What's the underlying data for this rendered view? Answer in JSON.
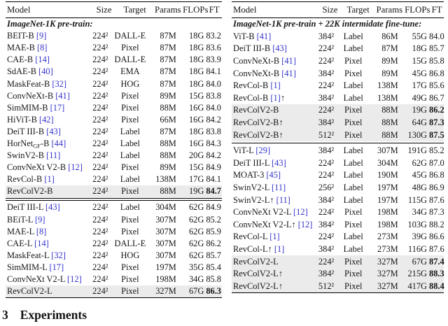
{
  "heading": {
    "number": "3",
    "title": "Experiments"
  },
  "colors": {
    "citation": "#3333cc",
    "row_highlight": "#ebebeb",
    "rule": "#000000"
  },
  "tables": [
    {
      "name": "imagenet1k-pretrain-results-table",
      "columns": [
        "Model",
        "Size",
        "Target",
        "Params",
        "FLOPs",
        "FT"
      ],
      "sections": [
        {
          "title": "ImageNet-1K pre-train:",
          "rows": [
            {
              "model": [
                [
                  "BEIT-B "
                ],
                [
                  "[9]",
                  "cite"
                ]
              ],
              "size": "224²",
              "target": "DALL-E",
              "params": "87M",
              "flops": "18G",
              "ft": "83.2",
              "hl": false,
              "ft_bold": false
            },
            {
              "model": [
                [
                  "MAE-B "
                ],
                [
                  "[8]",
                  "cite"
                ]
              ],
              "size": "224²",
              "target": "Pixel",
              "params": "87M",
              "flops": "18G",
              "ft": "83.6",
              "hl": false,
              "ft_bold": false
            },
            {
              "model": [
                [
                  "CAE-B "
                ],
                [
                  "[14]",
                  "cite"
                ]
              ],
              "size": "224²",
              "target": "DALL-E",
              "params": "87M",
              "flops": "18G",
              "ft": "83.9",
              "hl": false,
              "ft_bold": false
            },
            {
              "model": [
                [
                  "SdAE-B "
                ],
                [
                  "[40]",
                  "cite"
                ]
              ],
              "size": "224²",
              "target": "EMA",
              "params": "87M",
              "flops": "18G",
              "ft": "84.1",
              "hl": false,
              "ft_bold": false
            },
            {
              "model": [
                [
                  "MaskFeat-B "
                ],
                [
                  "[32]",
                  "cite"
                ]
              ],
              "size": "224²",
              "target": "HOG",
              "params": "87M",
              "flops": "18G",
              "ft": "84.0",
              "hl": false,
              "ft_bold": false
            },
            {
              "model": [
                [
                  "ConvNeXt-B "
                ],
                [
                  "[41]",
                  "cite"
                ]
              ],
              "size": "224²",
              "target": "Pixel",
              "params": "89M",
              "flops": "15G",
              "ft": "83.8",
              "hl": false,
              "ft_bold": false
            },
            {
              "model": [
                [
                  "SimMIM-B "
                ],
                [
                  "[17]",
                  "cite"
                ]
              ],
              "size": "224²",
              "target": "Pixel",
              "params": "88M",
              "flops": "16G",
              "ft": "84.0",
              "hl": false,
              "ft_bold": false
            },
            {
              "model": [
                [
                  "HiViT-B "
                ],
                [
                  "[42]",
                  "cite"
                ]
              ],
              "size": "224²",
              "target": "Pixel",
              "params": "66M",
              "flops": "16G",
              "ft": "84.2",
              "hl": false,
              "ft_bold": false
            },
            {
              "model": [
                [
                  "DeiT III-B "
                ],
                [
                  "[43]",
                  "cite"
                ]
              ],
              "size": "224²",
              "target": "Label",
              "params": "87M",
              "flops": "18G",
              "ft": "83.8",
              "hl": false,
              "ft_bold": false
            },
            {
              "model": [
                [
                  "HorNet"
                ],
                [
                  "GF",
                  "sub"
                ],
                [
                  "-B "
                ],
                [
                  "[44]",
                  "cite"
                ]
              ],
              "size": "224²",
              "target": "Label",
              "params": "88M",
              "flops": "16G",
              "ft": "84.3",
              "hl": false,
              "ft_bold": false
            },
            {
              "model": [
                [
                  "SwinV2-B "
                ],
                [
                  "[11]",
                  "cite"
                ]
              ],
              "size": "224²",
              "target": "Label",
              "params": "88M",
              "flops": "20G",
              "ft": "84.2",
              "hl": false,
              "ft_bold": false
            },
            {
              "model": [
                [
                  "ConvNeXt V2-B "
                ],
                [
                  "[12]",
                  "cite"
                ]
              ],
              "size": "224²",
              "target": "Pixel",
              "params": "89M",
              "flops": "15G",
              "ft": "84.9",
              "hl": false,
              "ft_bold": false
            },
            {
              "model": [
                [
                  "RevCol-B "
                ],
                [
                  "[1]",
                  "cite"
                ]
              ],
              "size": "224²",
              "target": "Label",
              "params": "138M",
              "flops": "17G",
              "ft": "84.1",
              "hl": false,
              "ft_bold": false
            },
            {
              "model": [
                [
                  "RevColV2-B"
                ]
              ],
              "size": "224²",
              "target": "Pixel",
              "params": "88M",
              "flops": "19G",
              "ft": "84.7",
              "hl": true,
              "ft_bold": true
            }
          ]
        },
        {
          "title": null,
          "rows": [
            {
              "model": [
                [
                  "DeiT III-L "
                ],
                [
                  "[43]",
                  "cite"
                ]
              ],
              "size": "224²",
              "target": "Label",
              "params": "304M",
              "flops": "62G",
              "ft": "84.9",
              "hl": false,
              "ft_bold": false
            },
            {
              "model": [
                [
                  "BEiT-L "
                ],
                [
                  "[9]",
                  "cite"
                ]
              ],
              "size": "224²",
              "target": "Pixel",
              "params": "307M",
              "flops": "62G",
              "ft": "85.2",
              "hl": false,
              "ft_bold": false
            },
            {
              "model": [
                [
                  "MAE-L "
                ],
                [
                  "[8]",
                  "cite"
                ]
              ],
              "size": "224²",
              "target": "Pixel",
              "params": "307M",
              "flops": "62G",
              "ft": "85.9",
              "hl": false,
              "ft_bold": false
            },
            {
              "model": [
                [
                  "CAE-L "
                ],
                [
                  "[14]",
                  "cite"
                ]
              ],
              "size": "224²",
              "target": "DALL-E",
              "params": "307M",
              "flops": "62G",
              "ft": "86.2",
              "hl": false,
              "ft_bold": false
            },
            {
              "model": [
                [
                  "MaskFeat-L "
                ],
                [
                  "[32]",
                  "cite"
                ]
              ],
              "size": "224²",
              "target": "HOG",
              "params": "307M",
              "flops": "62G",
              "ft": "85.7",
              "hl": false,
              "ft_bold": false
            },
            {
              "model": [
                [
                  "SimMIM-L "
                ],
                [
                  "[17]",
                  "cite"
                ]
              ],
              "size": "224²",
              "target": "Pixel",
              "params": "197M",
              "flops": "35G",
              "ft": "85.4",
              "hl": false,
              "ft_bold": false
            },
            {
              "model": [
                [
                  "ConvNeXt V2-L "
                ],
                [
                  "[12]",
                  "cite"
                ]
              ],
              "size": "224²",
              "target": "Pixel",
              "params": "198M",
              "flops": "34G",
              "ft": "85.8",
              "hl": false,
              "ft_bold": false
            },
            {
              "model": [
                [
                  "RevColV2-L"
                ]
              ],
              "size": "224²",
              "target": "Pixel",
              "params": "327M",
              "flops": "67G",
              "ft": "86.3",
              "hl": true,
              "ft_bold": true
            }
          ]
        }
      ]
    },
    {
      "name": "imagenet1k-22k-finetune-results-table",
      "columns": [
        "Model",
        "Size",
        "Target",
        "Params",
        "FLOPs",
        "FT"
      ],
      "sections": [
        {
          "title": "ImageNet-1K pre-train + 22K intermidate fine-tune:",
          "rows": [
            {
              "model": [
                [
                  "ViT-B "
                ],
                [
                  "[41]",
                  "cite"
                ]
              ],
              "size": "384²",
              "target": "Label",
              "params": "86M",
              "flops": "55G",
              "ft": "84.0",
              "hl": false,
              "ft_bold": false
            },
            {
              "model": [
                [
                  "DeiT III-B "
                ],
                [
                  "[43]",
                  "cite"
                ]
              ],
              "size": "224²",
              "target": "Label",
              "params": "87M",
              "flops": "18G",
              "ft": "85.7",
              "hl": false,
              "ft_bold": false
            },
            {
              "model": [
                [
                  "ConvNeXt-B "
                ],
                [
                  "[41]",
                  "cite"
                ]
              ],
              "size": "224²",
              "target": "Pixel",
              "params": "89M",
              "flops": "15G",
              "ft": "85.8",
              "hl": false,
              "ft_bold": false
            },
            {
              "model": [
                [
                  "ConvNeXt-B "
                ],
                [
                  "[41]",
                  "cite"
                ]
              ],
              "size": "384²",
              "target": "Pixel",
              "params": "89M",
              "flops": "45G",
              "ft": "86.8",
              "hl": false,
              "ft_bold": false
            },
            {
              "model": [
                [
                  "RevCol-B "
                ],
                [
                  "[1]",
                  "cite"
                ]
              ],
              "size": "224²",
              "target": "Label",
              "params": "138M",
              "flops": "17G",
              "ft": "85.6",
              "hl": false,
              "ft_bold": false
            },
            {
              "model": [
                [
                  "RevCol-B "
                ],
                [
                  "[1]",
                  "cite"
                ],
                [
                  "↑"
                ]
              ],
              "size": "384²",
              "target": "Label",
              "params": "138M",
              "flops": "49G",
              "ft": "86.7",
              "hl": false,
              "ft_bold": false
            },
            {
              "model": [
                [
                  "RevColV2-B"
                ]
              ],
              "size": "224²",
              "target": "Pixel",
              "params": "88M",
              "flops": "19G",
              "ft": "86.2",
              "hl": true,
              "ft_bold": true
            },
            {
              "model": [
                [
                  "RevColV2-B↑"
                ]
              ],
              "size": "384²",
              "target": "Pixel",
              "params": "88M",
              "flops": "64G",
              "ft": "87.3",
              "hl": true,
              "ft_bold": true
            },
            {
              "model": [
                [
                  "RevColV2-B↑"
                ]
              ],
              "size": "512²",
              "target": "Pixel",
              "params": "88M",
              "flops": "130G",
              "ft": "87.5",
              "hl": true,
              "ft_bold": true
            }
          ]
        },
        {
          "title": null,
          "rows": [
            {
              "model": [
                [
                  "ViT-L "
                ],
                [
                  "[29]",
                  "cite"
                ]
              ],
              "size": "384²",
              "target": "Label",
              "params": "307M",
              "flops": "191G",
              "ft": "85.2",
              "hl": false,
              "ft_bold": false
            },
            {
              "model": [
                [
                  "DeiT III-L "
                ],
                [
                  "[43]",
                  "cite"
                ]
              ],
              "size": "224²",
              "target": "Label",
              "params": "304M",
              "flops": "62G",
              "ft": "87.0",
              "hl": false,
              "ft_bold": false
            },
            {
              "model": [
                [
                  "MOAT-3 "
                ],
                [
                  "[45]",
                  "cite"
                ]
              ],
              "size": "224²",
              "target": "Label",
              "params": "190M",
              "flops": "45G",
              "ft": "86.8",
              "hl": false,
              "ft_bold": false
            },
            {
              "model": [
                [
                  "SwinV2-L "
                ],
                [
                  "[11]",
                  "cite"
                ]
              ],
              "size": "256²",
              "target": "Label",
              "params": "197M",
              "flops": "48G",
              "ft": "86.9",
              "hl": false,
              "ft_bold": false
            },
            {
              "model": [
                [
                  "SwinV2-L↑ "
                ],
                [
                  "[11]",
                  "cite"
                ]
              ],
              "size": "384²",
              "target": "Label",
              "params": "197M",
              "flops": "115G",
              "ft": "87.6",
              "hl": false,
              "ft_bold": false
            },
            {
              "model": [
                [
                  "ConvNeXt V2-L "
                ],
                [
                  "[12]",
                  "cite"
                ]
              ],
              "size": "224²",
              "target": "Pixel",
              "params": "198M",
              "flops": "34G",
              "ft": "87.3",
              "hl": false,
              "ft_bold": false
            },
            {
              "model": [
                [
                  "ConvNeXt V2-L↑ "
                ],
                [
                  "[12]",
                  "cite"
                ]
              ],
              "size": "384²",
              "target": "Pixel",
              "params": "198M",
              "flops": "103G",
              "ft": "88.2",
              "hl": false,
              "ft_bold": false
            },
            {
              "model": [
                [
                  "RevCol-L "
                ],
                [
                  "[1]",
                  "cite"
                ]
              ],
              "size": "224²",
              "target": "Label",
              "params": "273M",
              "flops": "39G",
              "ft": "86.6",
              "hl": false,
              "ft_bold": false
            },
            {
              "model": [
                [
                  "RevCol-L↑ "
                ],
                [
                  "[1]",
                  "cite"
                ]
              ],
              "size": "384²",
              "target": "Label",
              "params": "273M",
              "flops": "116G",
              "ft": "87.6",
              "hl": false,
              "ft_bold": false
            },
            {
              "model": [
                [
                  "RevColV2-L"
                ]
              ],
              "size": "224²",
              "target": "Pixel",
              "params": "327M",
              "flops": "67G",
              "ft": "87.4",
              "hl": true,
              "ft_bold": true
            },
            {
              "model": [
                [
                  "RevColV2-L↑"
                ]
              ],
              "size": "384²",
              "target": "Pixel",
              "params": "327M",
              "flops": "215G",
              "ft": "88.3",
              "hl": true,
              "ft_bold": true
            },
            {
              "model": [
                [
                  "RevColV2-L↑"
                ]
              ],
              "size": "512²",
              "target": "Pixel",
              "params": "327M",
              "flops": "417G",
              "ft": "88.4",
              "hl": true,
              "ft_bold": true
            }
          ]
        }
      ]
    }
  ]
}
